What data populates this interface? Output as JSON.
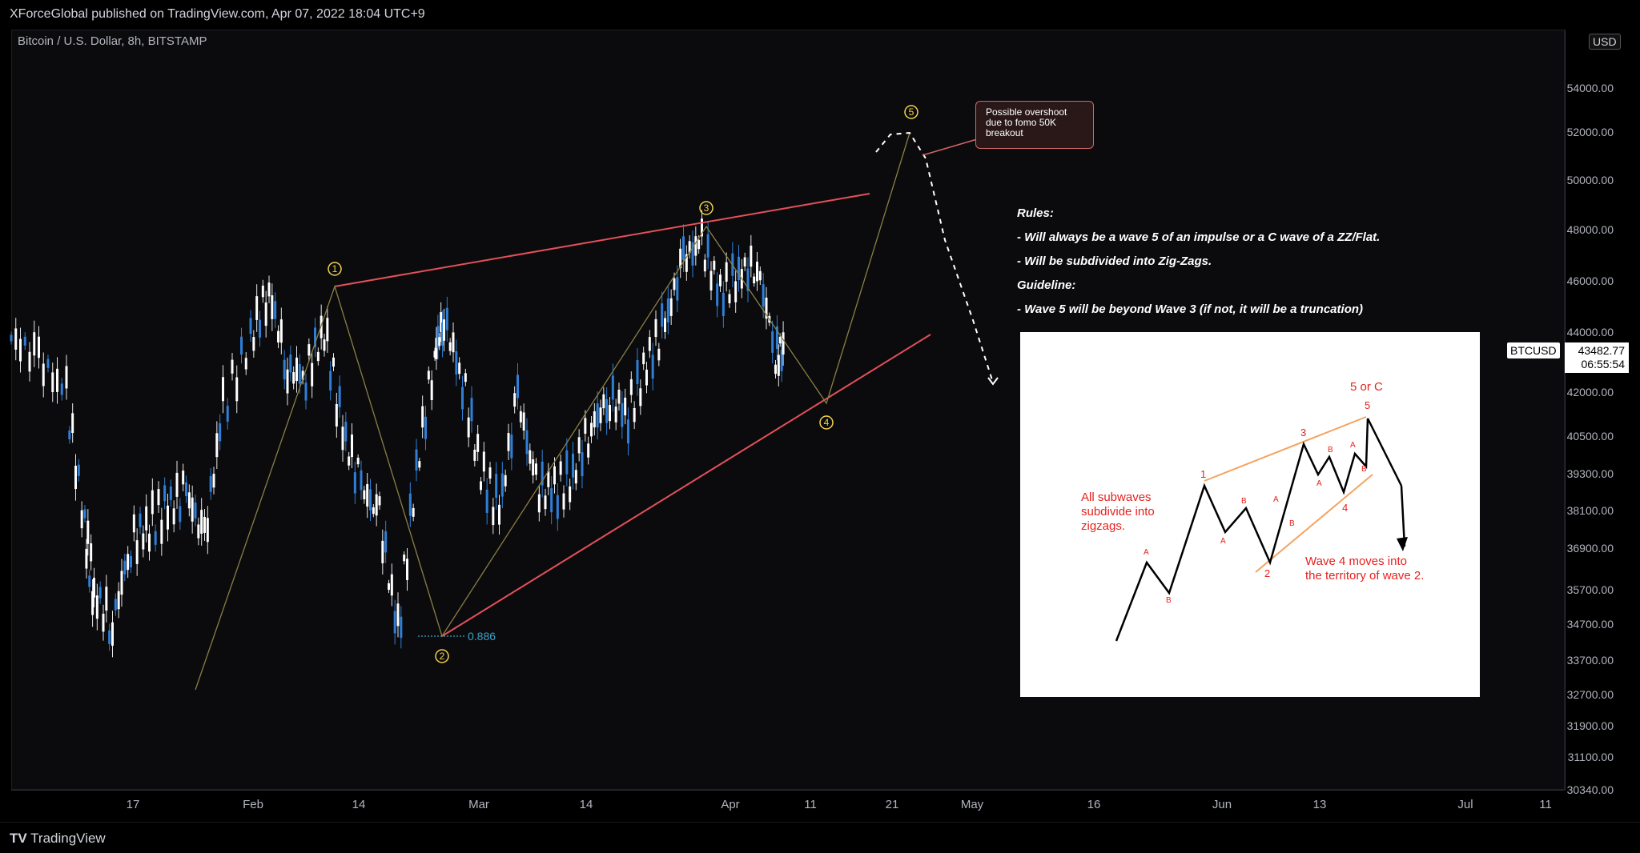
{
  "header": {
    "publisher": "XForceGlobal published on TradingView.com, Apr 07, 2022 18:04 UTC+9"
  },
  "chart": {
    "symbol": "Bitcoin / U.S. Dollar, 8h, BITSTAMP",
    "currency": "USD",
    "ticker": "BTCUSD",
    "price": "43482.77",
    "countdown": "06:55:54",
    "fib_label": "0.886"
  },
  "footer": {
    "brand": "TradingView"
  },
  "callout": {
    "line1": "Possible overshoot",
    "line2": "due to fomo 50K",
    "line3": "breakout"
  },
  "rules": {
    "title": "Rules:",
    "r1": "- Will always be a wave 5 of an impulse or a C wave of a ZZ/Flat.",
    "r2": "- Will be subdivided into Zig-Zags.",
    "guide": "Guideline:",
    "g1": "- Wave 5 will be beyond Wave 3 (if not, it will be a truncation)"
  },
  "inset": {
    "title": "5 or C",
    "note1": "All subwaves",
    "note2": "subdivide into",
    "note3": "zigzags.",
    "note4": "Wave 4 moves into",
    "note5": "the territory of wave 2.",
    "labels": [
      "1",
      "2",
      "3",
      "4",
      "5",
      "A",
      "B",
      "A",
      "B",
      "A",
      "B",
      "A",
      "B",
      "A",
      "B"
    ]
  },
  "chart_data": {
    "type": "line",
    "title": "Bitcoin / U.S. Dollar, 8h, BITSTAMP",
    "x_ticks": [
      "17",
      "Feb",
      "14",
      "Mar",
      "14",
      "Apr",
      "11",
      "21",
      "May",
      "16",
      "Jun",
      "13",
      "Jul",
      "11"
    ],
    "y_ticks": [
      "54000.00",
      "52000.00",
      "50000.00",
      "48000.00",
      "46000.00",
      "44000.00",
      "42000.00",
      "40500.00",
      "39300.00",
      "38100.00",
      "36900.00",
      "35700.00",
      "34700.00",
      "33700.00",
      "32700.00",
      "31900.00",
      "31100.00",
      "30340.00"
    ],
    "wave_labels": [
      "1",
      "2",
      "3",
      "4",
      "5"
    ],
    "price_path": [
      {
        "date": "2022-01-13",
        "price": 43800
      },
      {
        "date": "2022-01-16",
        "price": 43100
      },
      {
        "date": "2022-01-19",
        "price": 41900
      },
      {
        "date": "2022-01-21",
        "price": 37500
      },
      {
        "date": "2022-01-22",
        "price": 35600
      },
      {
        "date": "2022-01-24",
        "price": 34700
      },
      {
        "date": "2022-01-26",
        "price": 37100
      },
      {
        "date": "2022-01-28",
        "price": 37700
      },
      {
        "date": "2022-01-30",
        "price": 38200
      },
      {
        "date": "2022-02-01",
        "price": 38700
      },
      {
        "date": "2022-02-03",
        "price": 37200
      },
      {
        "date": "2022-02-05",
        "price": 41500
      },
      {
        "date": "2022-02-08",
        "price": 43800
      },
      {
        "date": "2022-02-10",
        "price": 45600
      },
      {
        "date": "2022-02-12",
        "price": 42700
      },
      {
        "date": "2022-02-14",
        "price": 42600
      },
      {
        "date": "2022-02-16",
        "price": 44100
      },
      {
        "date": "2022-02-18",
        "price": 40700
      },
      {
        "date": "2022-02-20",
        "price": 38900
      },
      {
        "date": "2022-02-22",
        "price": 37900
      },
      {
        "date": "2022-02-24",
        "price": 34400
      },
      {
        "date": "2022-02-26",
        "price": 39400
      },
      {
        "date": "2022-02-28",
        "price": 43300
      },
      {
        "date": "2022-03-01",
        "price": 44500
      },
      {
        "date": "2022-03-03",
        "price": 42400
      },
      {
        "date": "2022-03-05",
        "price": 39400
      },
      {
        "date": "2022-03-07",
        "price": 38100
      },
      {
        "date": "2022-03-09",
        "price": 41900
      },
      {
        "date": "2022-03-11",
        "price": 38900
      },
      {
        "date": "2022-03-13",
        "price": 38700
      },
      {
        "date": "2022-03-15",
        "price": 39300
      },
      {
        "date": "2022-03-17",
        "price": 40900
      },
      {
        "date": "2022-03-19",
        "price": 41800
      },
      {
        "date": "2022-03-21",
        "price": 41300
      },
      {
        "date": "2022-03-23",
        "price": 42900
      },
      {
        "date": "2022-03-25",
        "price": 44300
      },
      {
        "date": "2022-03-27",
        "price": 46900
      },
      {
        "date": "2022-03-29",
        "price": 47500
      },
      {
        "date": "2022-03-31",
        "price": 45500
      },
      {
        "date": "2022-04-02",
        "price": 46300
      },
      {
        "date": "2022-04-04",
        "price": 46600
      },
      {
        "date": "2022-04-06",
        "price": 43300
      },
      {
        "date": "2022-04-07",
        "price": 43400
      }
    ]
  }
}
